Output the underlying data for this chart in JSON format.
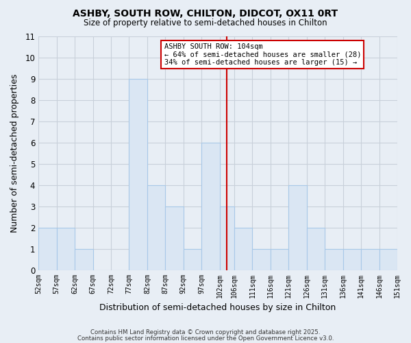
{
  "title": "ASHBY, SOUTH ROW, CHILTON, DIDCOT, OX11 0RT",
  "subtitle": "Size of property relative to semi-detached houses in Chilton",
  "xlabel": "Distribution of semi-detached houses by size in Chilton",
  "ylabel": "Number of semi-detached properties",
  "bin_edges": [
    52,
    57,
    62,
    67,
    72,
    77,
    82,
    87,
    92,
    97,
    102,
    106,
    111,
    116,
    121,
    126,
    131,
    136,
    141,
    146,
    151
  ],
  "counts": [
    2,
    2,
    1,
    0,
    0,
    9,
    4,
    3,
    1,
    6,
    3,
    2,
    1,
    1,
    4,
    2,
    1,
    1,
    1,
    1
  ],
  "bar_color": "#dae6f3",
  "bar_edge_color": "#a8c8e8",
  "reference_line_x": 104,
  "reference_line_color": "#cc0000",
  "annotation_title": "ASHBY SOUTH ROW: 104sqm",
  "annotation_line1": "← 64% of semi-detached houses are smaller (28)",
  "annotation_line2": "34% of semi-detached houses are larger (15) →",
  "annotation_box_color": "#ffffff",
  "annotation_box_edge_color": "#cc0000",
  "background_color": "#e8eef5",
  "grid_color": "#c8d0da",
  "ylim": [
    0,
    11
  ],
  "yticks": [
    0,
    1,
    2,
    3,
    4,
    5,
    6,
    7,
    8,
    9,
    10,
    11
  ],
  "tick_labels": [
    "52sqm",
    "57sqm",
    "62sqm",
    "67sqm",
    "72sqm",
    "77sqm",
    "82sqm",
    "87sqm",
    "92sqm",
    "97sqm",
    "102sqm",
    "106sqm",
    "111sqm",
    "116sqm",
    "121sqm",
    "126sqm",
    "131sqm",
    "136sqm",
    "141sqm",
    "146sqm",
    "151sqm"
  ],
  "footer_line1": "Contains HM Land Registry data © Crown copyright and database right 2025.",
  "footer_line2": "Contains public sector information licensed under the Open Government Licence v3.0."
}
